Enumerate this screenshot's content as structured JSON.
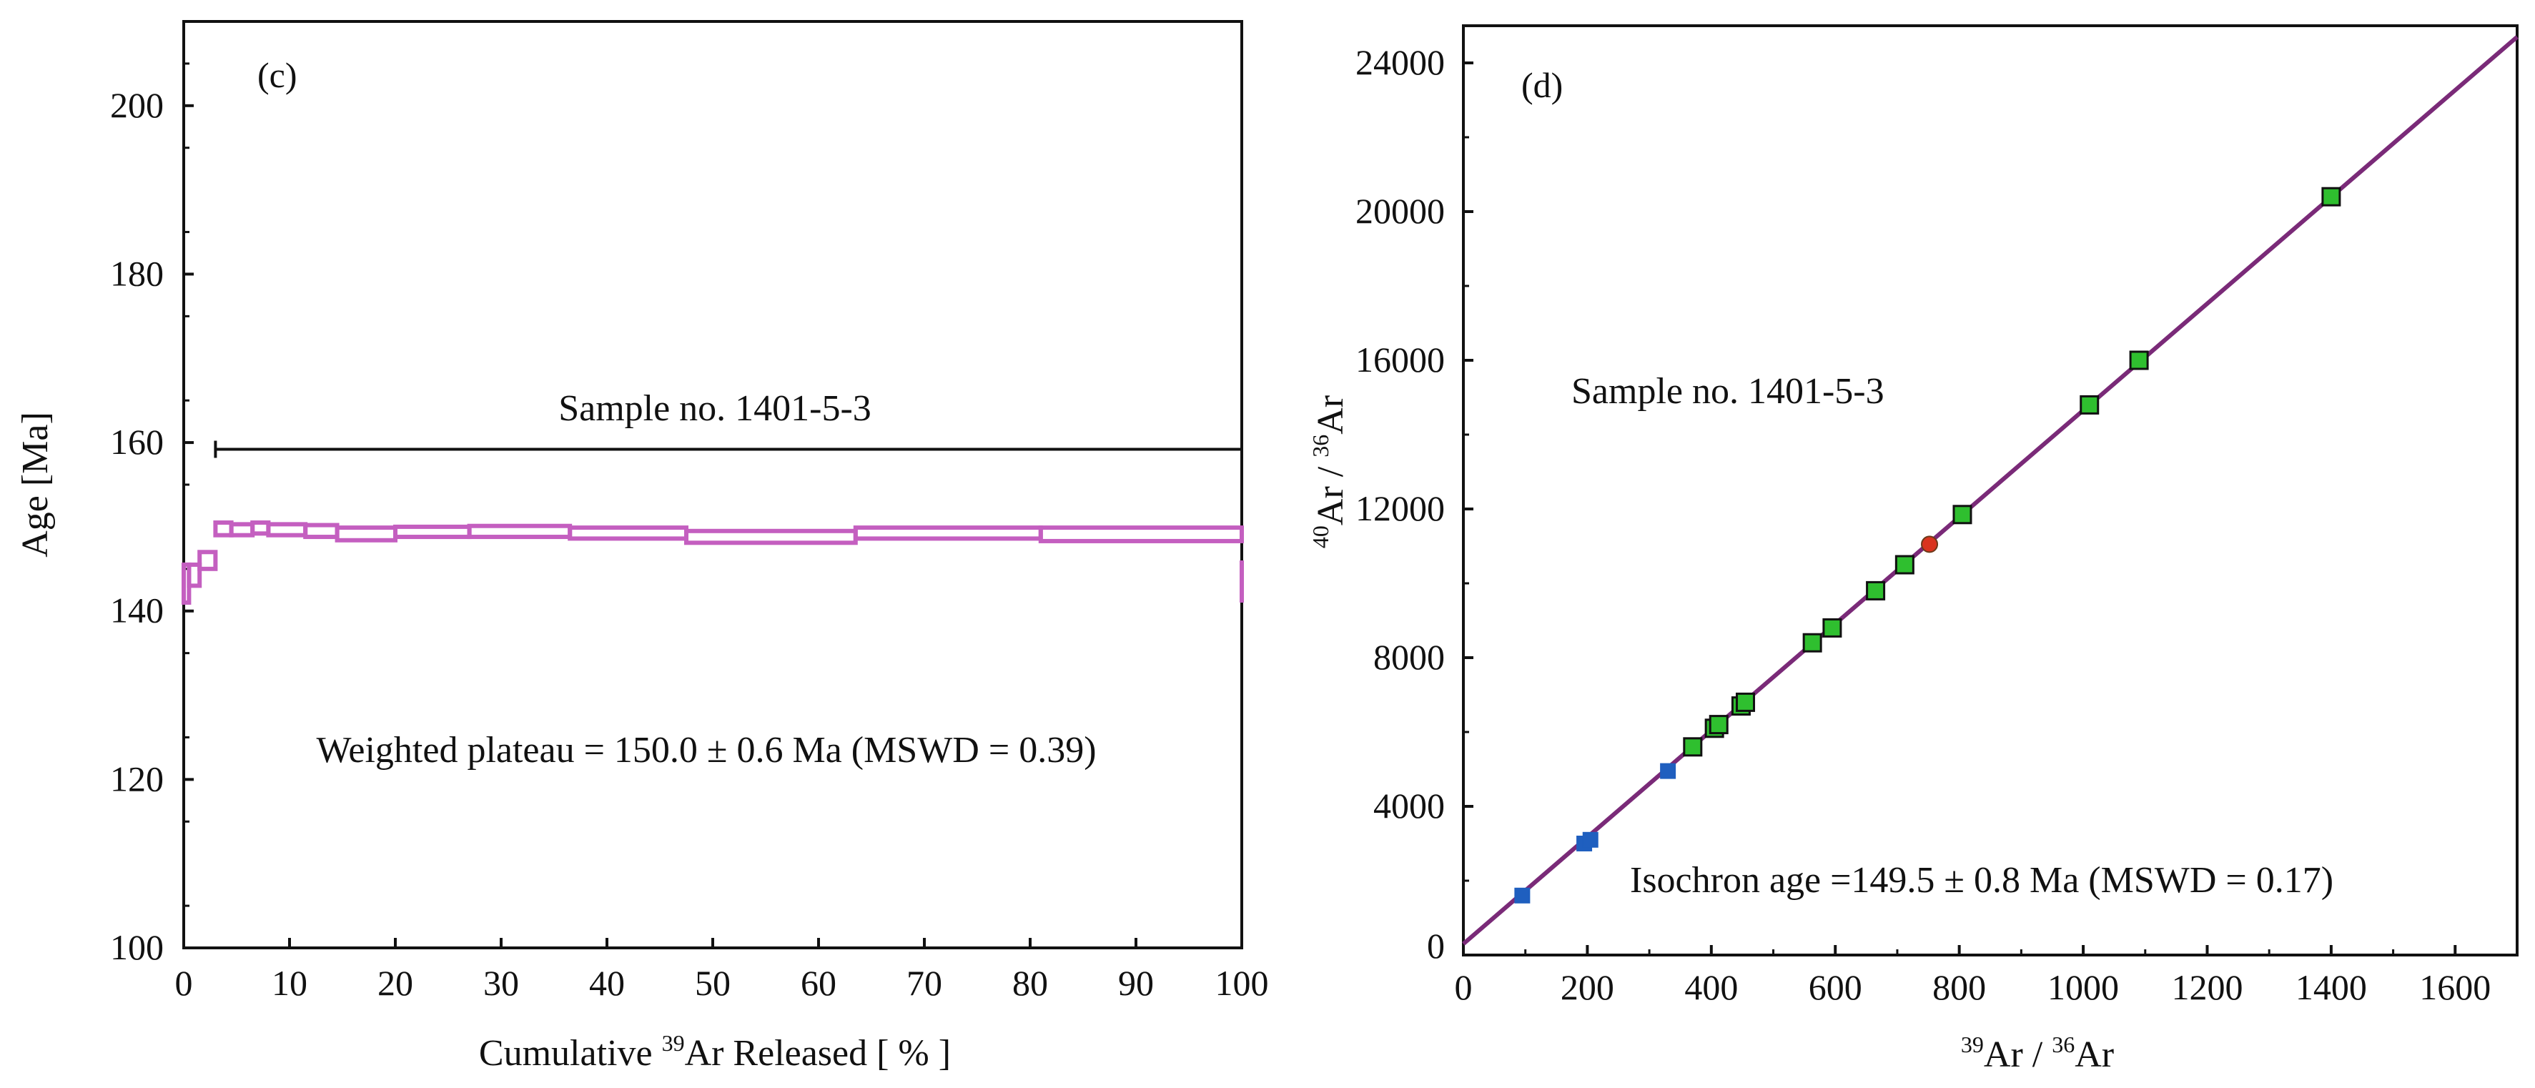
{
  "chart_data": [
    {
      "type": "step",
      "panel_label": "(c)",
      "title": "",
      "xlabel": {
        "prefix": "Cumulative ",
        "sup": "39",
        "suffix": "Ar Released [ % ]"
      },
      "ylabel": "Age [Ma]",
      "xlim": [
        0,
        100
      ],
      "ylim": [
        100,
        210
      ],
      "x_ticks": [
        0,
        10,
        20,
        30,
        40,
        50,
        60,
        70,
        80,
        90,
        100
      ],
      "y_ticks": [
        100,
        120,
        140,
        160,
        180,
        200
      ],
      "sample_label": "Sample no. 1401-5-3",
      "plateau_bar": {
        "x_start": 3,
        "x_end": 100,
        "y": 159.2
      },
      "annotation": "Weighted plateau = 150.0 ± 0.6 Ma (MSWD = 0.39)",
      "color": "#c45fc0",
      "steps": [
        {
          "x0": 0.0,
          "x1": 0.5,
          "lo": 141.0,
          "hi": 145.5
        },
        {
          "x0": 0.5,
          "x1": 1.5,
          "lo": 143.0,
          "hi": 145.5
        },
        {
          "x0": 1.5,
          "x1": 3.0,
          "lo": 145.0,
          "hi": 147.0
        },
        {
          "x0": 3.0,
          "x1": 4.5,
          "lo": 149.0,
          "hi": 150.5
        },
        {
          "x0": 4.5,
          "x1": 6.5,
          "lo": 149.0,
          "hi": 150.3
        },
        {
          "x0": 6.5,
          "x1": 8.0,
          "lo": 149.2,
          "hi": 150.5
        },
        {
          "x0": 8.0,
          "x1": 11.5,
          "lo": 149.0,
          "hi": 150.3
        },
        {
          "x0": 11.5,
          "x1": 14.5,
          "lo": 148.8,
          "hi": 150.2
        },
        {
          "x0": 14.5,
          "x1": 20.0,
          "lo": 148.4,
          "hi": 149.9
        },
        {
          "x0": 20.0,
          "x1": 27.0,
          "lo": 148.8,
          "hi": 150.0
        },
        {
          "x0": 27.0,
          "x1": 36.5,
          "lo": 148.8,
          "hi": 150.1
        },
        {
          "x0": 36.5,
          "x1": 47.5,
          "lo": 148.6,
          "hi": 149.9
        },
        {
          "x0": 47.5,
          "x1": 63.5,
          "lo": 148.1,
          "hi": 149.5
        },
        {
          "x0": 63.5,
          "x1": 81.0,
          "lo": 148.6,
          "hi": 149.9
        },
        {
          "x0": 81.0,
          "x1": 100.0,
          "lo": 148.3,
          "hi": 149.9
        },
        {
          "x0": 100.0,
          "x1": 100.0,
          "lo": 141.0,
          "hi": 146.0
        }
      ]
    },
    {
      "type": "scatter",
      "panel_label": "(d)",
      "title": "",
      "xlabel": {
        "sup1": "39",
        "mid": "Ar / ",
        "sup2": "36",
        "suffix": "Ar"
      },
      "ylabel": {
        "sup1": "40",
        "mid": "Ar / ",
        "sup2": "36",
        "suffix": "Ar"
      },
      "xlim": [
        0,
        1700
      ],
      "ylim": [
        0,
        25000
      ],
      "x_ticks": [
        0,
        200,
        400,
        600,
        800,
        1000,
        1200,
        1400,
        1600
      ],
      "y_ticks": [
        0,
        4000,
        8000,
        12000,
        16000,
        20000,
        24000
      ],
      "sample_label": "Sample no. 1401-5-3",
      "annotation": "Isochron age =149.5 ± 0.8 Ma (MSWD = 0.17)",
      "line": {
        "x0": 0,
        "y0": 300,
        "x1": 1700,
        "y1": 24700,
        "color": "#7a2a78"
      },
      "colors": {
        "green": "#2fbf2f",
        "blue": "#1f5fbf",
        "red": "#d9341f"
      },
      "points": [
        {
          "x": 95,
          "y": 1600,
          "kind": "blue"
        },
        {
          "x": 195,
          "y": 3000,
          "kind": "blue"
        },
        {
          "x": 205,
          "y": 3100,
          "kind": "blue"
        },
        {
          "x": 330,
          "y": 4950,
          "kind": "blue"
        },
        {
          "x": 370,
          "y": 5600,
          "kind": "green"
        },
        {
          "x": 405,
          "y": 6100,
          "kind": "green"
        },
        {
          "x": 412,
          "y": 6200,
          "kind": "green"
        },
        {
          "x": 448,
          "y": 6700,
          "kind": "green"
        },
        {
          "x": 455,
          "y": 6800,
          "kind": "green"
        },
        {
          "x": 563,
          "y": 8400,
          "kind": "green"
        },
        {
          "x": 595,
          "y": 8800,
          "kind": "green"
        },
        {
          "x": 665,
          "y": 9800,
          "kind": "green"
        },
        {
          "x": 712,
          "y": 10500,
          "kind": "green"
        },
        {
          "x": 752,
          "y": 11050,
          "kind": "red"
        },
        {
          "x": 805,
          "y": 11850,
          "kind": "green"
        },
        {
          "x": 1010,
          "y": 14800,
          "kind": "green"
        },
        {
          "x": 1090,
          "y": 16000,
          "kind": "green"
        },
        {
          "x": 1400,
          "y": 20400,
          "kind": "green"
        }
      ]
    }
  ]
}
